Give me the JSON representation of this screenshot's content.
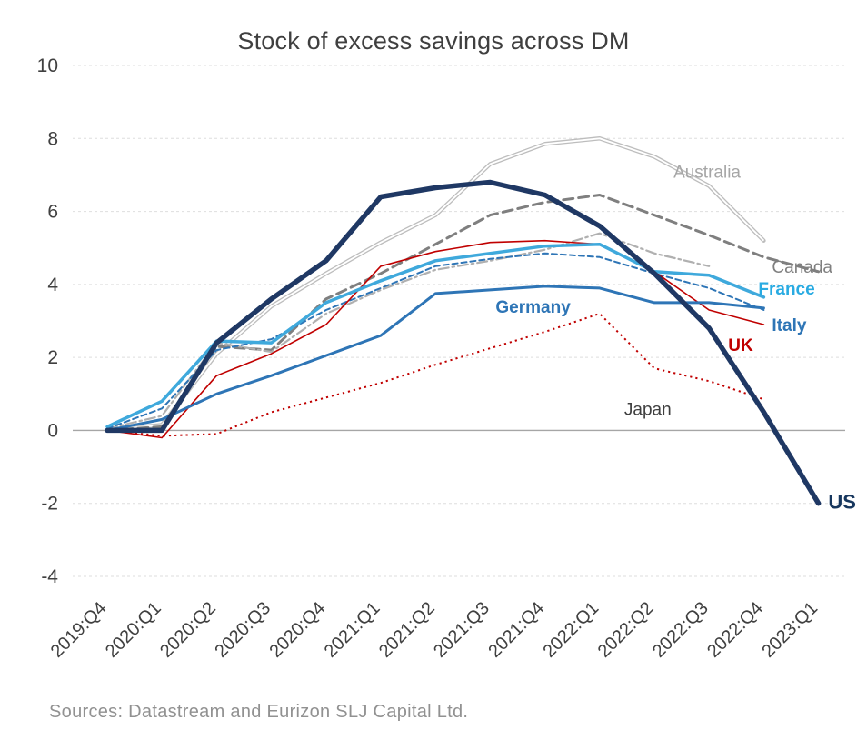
{
  "page": {
    "source": "Sources: Datastream and Eurizon SLJ Capital Ltd."
  },
  "chart_data": {
    "type": "line",
    "title": "Stock of excess savings across DM",
    "xlabel": "",
    "ylabel": "",
    "ylim": [
      -4,
      10
    ],
    "yticks": [
      10,
      8,
      6,
      4,
      2,
      0,
      -2,
      -4
    ],
    "grid": "horizontal light dashed gridlines, solid gray zero line",
    "legend": "direct labels next to lines",
    "categories": [
      "2019:Q4",
      "2020:Q1",
      "2020:Q2",
      "2020:Q3",
      "2020:Q4",
      "2021:Q1",
      "2021:Q2",
      "2021:Q3",
      "2021:Q4",
      "2022:Q1",
      "2022:Q2",
      "2022:Q3",
      "2022:Q4",
      "2023:Q1"
    ],
    "series": [
      {
        "name": "Australia",
        "color": "#bdbdbd",
        "width": 4.5,
        "double": true,
        "dash": "solid",
        "values": [
          0,
          0.15,
          2.1,
          3.4,
          4.3,
          5.15,
          5.9,
          7.3,
          7.85,
          8,
          7.5,
          6.7,
          5.2,
          null
        ],
        "label": {
          "text": "Australia",
          "xi": 10.35,
          "y": 7.05,
          "size": 19,
          "bold": false,
          "color": "#a6a6a6",
          "anchor": "start"
        }
      },
      {
        "name": "Canada",
        "color": "#7f7f7f",
        "width": 3,
        "dash": "dashed",
        "values": [
          0,
          0.1,
          2.3,
          2.2,
          3.6,
          4.3,
          5.1,
          5.9,
          6.25,
          6.45,
          5.9,
          5.35,
          4.75,
          4.35
        ],
        "label": {
          "text": "Canada",
          "xi": 12.15,
          "y": 4.45,
          "size": 19,
          "bold": false,
          "color": "#7f7f7f",
          "anchor": "start"
        }
      },
      {
        "name": "",
        "color": "#b0b0b0",
        "width": 2.2,
        "dash": "dashdot",
        "values": [
          0.05,
          0.4,
          2.4,
          2.15,
          3.2,
          3.85,
          4.4,
          4.65,
          4.95,
          5.4,
          4.85,
          4.5,
          null,
          null
        ]
      },
      {
        "name": "Italy",
        "color": "#2e75b6",
        "width": 2,
        "dash": "dashed-short",
        "values": [
          0.05,
          0.6,
          2.2,
          2.5,
          3.3,
          3.9,
          4.5,
          4.7,
          4.85,
          4.75,
          4.3,
          3.9,
          3.3,
          null
        ],
        "label": {
          "text": "Italy",
          "xi": 12.15,
          "y": 2.85,
          "size": 19,
          "bold": true,
          "color": "#2e75b6",
          "anchor": "start"
        }
      },
      {
        "name": "UK",
        "color": "#c00000",
        "width": 1.6,
        "dash": "solid",
        "values": [
          0,
          -0.2,
          1.5,
          2.1,
          2.9,
          4.5,
          4.9,
          5.15,
          5.2,
          5.1,
          4.35,
          3.3,
          2.9,
          null
        ],
        "label": {
          "text": "UK",
          "xi": 11.35,
          "y": 2.3,
          "size": 19,
          "bold": true,
          "color": "#c00000",
          "anchor": "start"
        }
      },
      {
        "name": "Japan",
        "color": "#c00000",
        "width": 2,
        "dash": "dotted",
        "values": [
          0,
          -0.15,
          -0.1,
          0.5,
          0.9,
          1.3,
          1.8,
          2.25,
          2.7,
          3.2,
          1.7,
          1.35,
          0.85,
          null
        ],
        "label": {
          "text": "Japan",
          "xi": 9.45,
          "y": 0.55,
          "size": 19,
          "bold": false,
          "color": "#3f3f3f",
          "anchor": "start"
        }
      },
      {
        "name": "Germany",
        "color": "#2e75b6",
        "width": 3,
        "dash": "solid",
        "values": [
          0,
          0.3,
          1,
          1.5,
          2.05,
          2.6,
          3.75,
          3.85,
          3.95,
          3.9,
          3.5,
          3.5,
          3.35,
          null
        ],
        "label": {
          "text": "Germany",
          "xi": 7.1,
          "y": 3.35,
          "size": 19,
          "bold": true,
          "color": "#2e75b6",
          "anchor": "start"
        }
      },
      {
        "name": "France",
        "color": "#3fa9dc",
        "width": 3.5,
        "dash": "solid",
        "values": [
          0.1,
          0.8,
          2.45,
          2.4,
          3.5,
          4.1,
          4.65,
          4.85,
          5.05,
          5.1,
          4.35,
          4.25,
          3.65,
          null
        ],
        "label": {
          "text": "France",
          "xi": 11.9,
          "y": 3.85,
          "size": 19,
          "bold": true,
          "color": "#29abe2",
          "anchor": "start"
        }
      },
      {
        "name": "US",
        "color": "#1f3864",
        "width": 5.5,
        "dash": "solid",
        "values": [
          0,
          0,
          2.4,
          3.6,
          4.65,
          6.4,
          6.65,
          6.8,
          6.45,
          5.6,
          4.3,
          2.8,
          0.5,
          -2
        ],
        "label": {
          "text": "US",
          "xi": 13.18,
          "y": -2.0,
          "size": 22,
          "bold": true,
          "color": "#17375e",
          "anchor": "start"
        }
      }
    ]
  }
}
